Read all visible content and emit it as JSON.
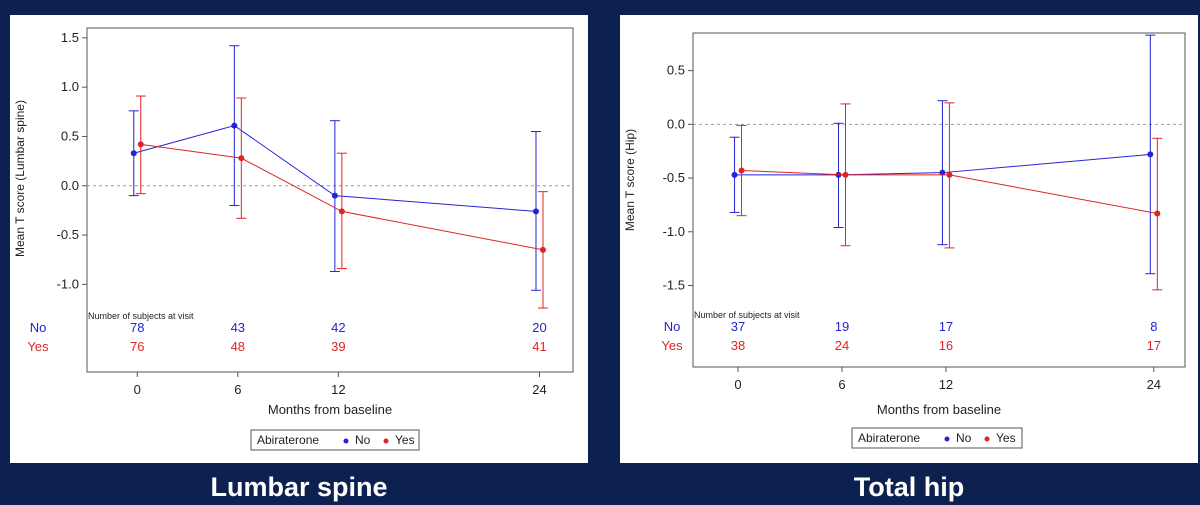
{
  "colors": {
    "no": "#2424d6",
    "yes": "#e02424",
    "background": "#0c2150"
  },
  "chart_data": [
    {
      "type": "line",
      "caption": "Lumbar spine",
      "ylabel": "Mean T score (Lumbar spine)",
      "xlabel": "Months from baseline",
      "x": [
        0,
        6,
        12,
        24
      ],
      "xlim": [
        -3,
        26
      ],
      "ylim": [
        -1.25,
        1.6
      ],
      "yticks": [
        1.5,
        1.0,
        0.5,
        0.0,
        -0.5,
        -1.0
      ],
      "ytick_labels": [
        "1.5",
        "1.0",
        "0.5",
        "0.0",
        "-0.5",
        "-1.0"
      ],
      "reference_line": 0,
      "series": [
        {
          "name": "No",
          "key": "no",
          "values": [
            0.33,
            0.61,
            -0.1,
            -0.26
          ],
          "lower": [
            -0.1,
            -0.2,
            -0.87,
            -1.06
          ],
          "upper": [
            0.76,
            1.42,
            0.66,
            0.55
          ]
        },
        {
          "name": "Yes",
          "key": "yes",
          "values": [
            0.42,
            0.28,
            -0.26,
            -0.65
          ],
          "lower": [
            -0.08,
            -0.33,
            -0.84,
            -1.24
          ],
          "upper": [
            0.91,
            0.89,
            0.33,
            -0.06
          ]
        }
      ],
      "subjects": {
        "label": "Number of subjects at visit",
        "rows": [
          {
            "name": "No",
            "key": "no",
            "counts": [
              "78",
              "43",
              "42",
              "20"
            ]
          },
          {
            "name": "Yes",
            "key": "yes",
            "counts": [
              "76",
              "48",
              "39",
              "41"
            ]
          }
        ]
      },
      "legend": {
        "title": "Abiraterone",
        "entries": [
          "No",
          "Yes"
        ]
      }
    },
    {
      "type": "line",
      "caption": "Total hip",
      "ylabel": "Mean T score (Hip)",
      "xlabel": "Months from baseline",
      "x": [
        0,
        6,
        12,
        24
      ],
      "xlim": [
        -2.6,
        25.8
      ],
      "ylim": [
        -1.7,
        0.85
      ],
      "yticks": [
        0.5,
        0.0,
        -0.5,
        -1.0,
        -1.5
      ],
      "ytick_labels": [
        "0.5",
        "0.0",
        "-0.5",
        "-1.0",
        "-1.5"
      ],
      "reference_line": 0,
      "series": [
        {
          "name": "No",
          "key": "no",
          "values": [
            -0.47,
            -0.47,
            -0.45,
            -0.28
          ],
          "lower": [
            -0.82,
            -0.96,
            -1.12,
            -1.39
          ],
          "upper": [
            -0.12,
            0.01,
            0.22,
            0.83
          ]
        },
        {
          "name": "Yes",
          "key": "yes",
          "values": [
            -0.43,
            -0.47,
            -0.47,
            -0.83
          ],
          "lower": [
            -0.85,
            -1.13,
            -1.15,
            -1.54
          ],
          "upper": [
            -0.01,
            0.19,
            0.2,
            -0.13
          ]
        }
      ],
      "subjects": {
        "label": "Number of subjects at visit",
        "rows": [
          {
            "name": "No",
            "key": "no",
            "counts": [
              "37",
              "19",
              "17",
              "8"
            ]
          },
          {
            "name": "Yes",
            "key": "yes",
            "counts": [
              "38",
              "24",
              "16",
              "17"
            ]
          }
        ]
      },
      "legend": {
        "title": "Abiraterone",
        "entries": [
          "No",
          "Yes"
        ]
      }
    }
  ]
}
